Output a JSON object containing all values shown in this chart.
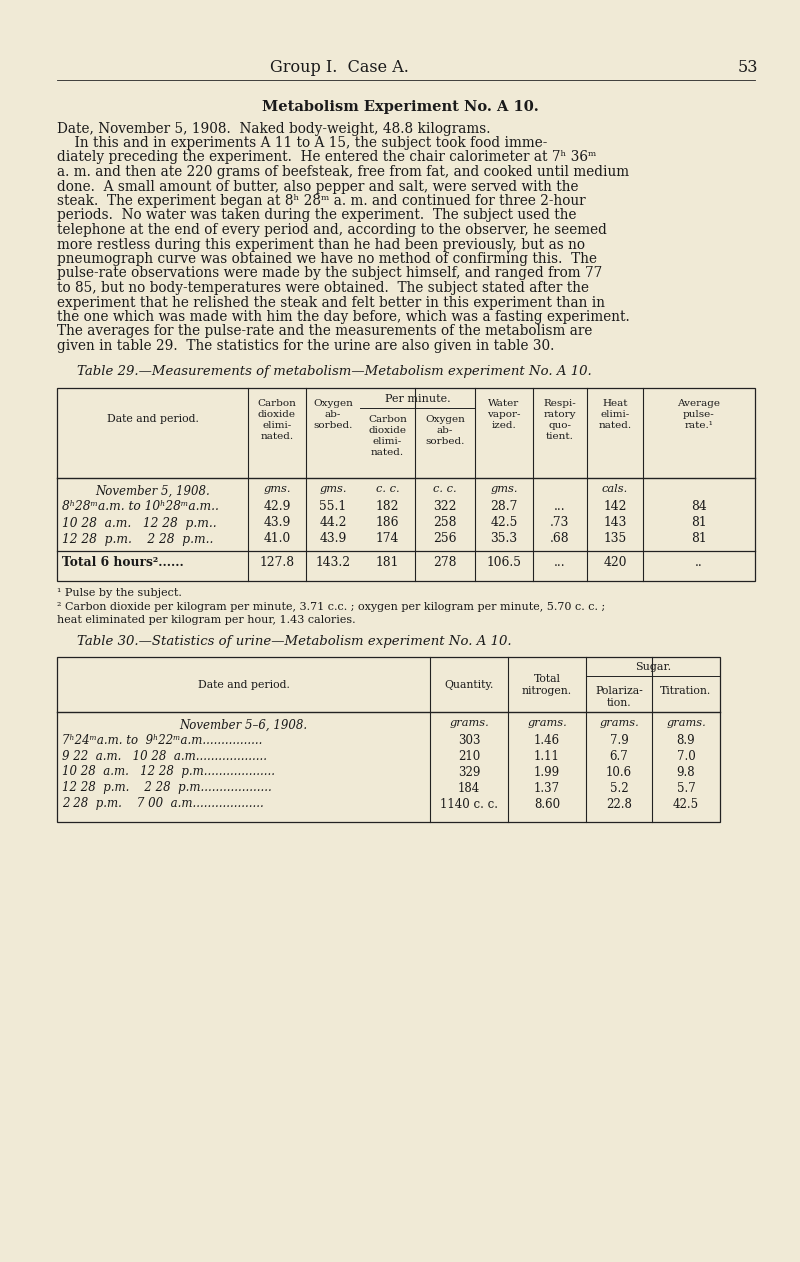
{
  "bg_color": "#f0ead6",
  "text_color": "#1a1a1a",
  "page_header": "Group I.  Case A.",
  "page_number": "53",
  "section_title": "Metabolism Experiment No. A 10.",
  "table29_caption": "Table 29.—Measurements of metabolism—Metabolism experiment No. A 10.",
  "table29_data_rows": [
    [
      "8ʰ28ᵐa.m. to 10ʰ28ᵐa.m..",
      "42.9",
      "55.1",
      "182",
      "322",
      "28.7",
      "...",
      "142",
      "84"
    ],
    [
      "10 28  a.m.   12 28  p.m..",
      "43.9",
      "44.2",
      "186",
      "258",
      "42.5",
      ".73",
      "143",
      "81"
    ],
    [
      "12 28  p.m.    2 28  p.m..",
      "41.0",
      "43.9",
      "174",
      "256",
      "35.3",
      ".68",
      "135",
      "81"
    ]
  ],
  "table29_total_row": [
    "Total 6 hours²......",
    "127.8",
    "143.2",
    "181",
    "278",
    "106.5",
    "...",
    "420",
    ".."
  ],
  "table29_footnotes": [
    "¹ Pulse by the subject.",
    "² Carbon dioxide per kilogram per minute, 3.71 c.c. ; oxygen per kilogram per minute, 5.70 c. c. ;\nheat eliminated per kilogram per hour, 1.43 calories."
  ],
  "table30_caption": "Table 30.—Statistics of urine—Metabolism experiment No. A 10.",
  "table30_data_rows": [
    [
      "7ʰ24ᵐa.m. to  9ʰ22ᵐa.m................",
      "303",
      "1.46",
      "7.9",
      "8.9"
    ],
    [
      "9 22  a.m.   10 28  a.m...................",
      "210",
      "1.11",
      "6.7",
      "7.0"
    ],
    [
      "10 28  a.m.   12 28  p.m...................",
      "329",
      "1.99",
      "10.6",
      "9.8"
    ],
    [
      "12 28  p.m.    2 28  p.m...................",
      "184",
      "1.37",
      "5.2",
      "5.7"
    ],
    [
      "2 28  p.m.    7 00  a.m...................",
      "1140 c. c.",
      "8.60",
      "22.8",
      "42.5"
    ]
  ]
}
